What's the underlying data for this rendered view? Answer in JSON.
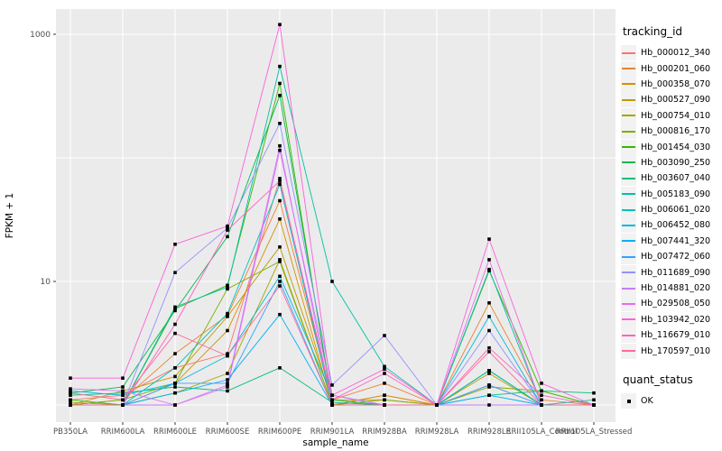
{
  "chart_data": {
    "type": "line",
    "title": "",
    "xlabel": "sample_name",
    "ylabel": "FPKM + 1",
    "y_scale": "log10",
    "y_ticks": [
      1000,
      10
    ],
    "y_tick_labels": [
      "1000",
      "10"
    ],
    "y_gridline_values": [
      1,
      10,
      100,
      1000
    ],
    "ylim": [
      0.73,
      1600
    ],
    "grid": true,
    "panel_bg": "#EBEBEB",
    "grid_color": "#FFFFFF",
    "point_color": "#000000",
    "axis_text_color": "#4D4D4D",
    "categories": [
      "PB350LA",
      "RRIM600LA",
      "RRIM600LE",
      "RRIM600SE",
      "RRIM600PE",
      "RRIM901LA",
      "RRIM928BA",
      "RRIM928LA",
      "RRIM928LE",
      "RRII105LA_Control",
      "RRII105LA_Stressed"
    ],
    "legend": {
      "title": "tracking_id",
      "position": "right"
    },
    "legend2": {
      "title": "quant_status",
      "items": [
        {
          "label": "OK",
          "symbol": "square",
          "color": "#000000"
        }
      ]
    },
    "series": [
      {
        "name": "Hb_000012_340",
        "color": "#F8766D",
        "values": [
          1.1,
          1.2,
          2.0,
          2.6,
          68,
          1.0,
          1.2,
          1.0,
          1.45,
          1.0,
          1.0
        ]
      },
      {
        "name": "Hb_000201_060",
        "color": "#EA8331",
        "values": [
          1.0,
          1.1,
          2.6,
          5.3,
          45,
          1.1,
          1.5,
          1.0,
          6.7,
          1.1,
          1.0
        ]
      },
      {
        "name": "Hb_000358_070",
        "color": "#D89000",
        "values": [
          1.0,
          1.0,
          1.5,
          4.0,
          32,
          1.0,
          1.2,
          1.0,
          1.9,
          1.0,
          1.0
        ]
      },
      {
        "name": "Hb_000527_090",
        "color": "#C09B00",
        "values": [
          1.0,
          1.3,
          1.7,
          5.2,
          19,
          1.1,
          1.1,
          1.0,
          1.8,
          1.0,
          1.0
        ]
      },
      {
        "name": "Hb_000754_010",
        "color": "#A3A500",
        "values": [
          1.05,
          1.0,
          1.25,
          1.8,
          15,
          1.0,
          1.0,
          1.0,
          1.9,
          1.0,
          1.0
        ]
      },
      {
        "name": "Hb_000816_170",
        "color": "#7CAE00",
        "values": [
          1.0,
          1.1,
          1.5,
          8.7,
          14.5,
          1.0,
          1.1,
          1.0,
          1.4,
          1.3,
          1.0
        ]
      },
      {
        "name": "Hb_001454_030",
        "color": "#39B600",
        "values": [
          1.1,
          1.0,
          6.0,
          9.3,
          400,
          1.0,
          1.0,
          1.0,
          12.2,
          1.3,
          1.0
        ]
      },
      {
        "name": "Hb_003090_250",
        "color": "#00BB4E",
        "values": [
          1.25,
          1.4,
          5.8,
          23,
          320,
          1.1,
          1.0,
          1.0,
          1.9,
          1.0,
          1.0
        ]
      },
      {
        "name": "Hb_003607_040",
        "color": "#00BF7D",
        "values": [
          1.2,
          1.25,
          1.4,
          1.3,
          2.0,
          1.05,
          1.0,
          1.0,
          1.2,
          1.3,
          1.25
        ]
      },
      {
        "name": "Hb_005183_090",
        "color": "#00C1A3",
        "values": [
          1.0,
          1.0,
          6.2,
          9.0,
          550,
          10,
          2.05,
          1.0,
          12.5,
          1.0,
          1.1
        ]
      },
      {
        "name": "Hb_006061_020",
        "color": "#00BFC4",
        "values": [
          1.0,
          1.0,
          2.0,
          5.5,
          61,
          1.0,
          1.0,
          1.0,
          1.9,
          1.0,
          1.0
        ]
      },
      {
        "name": "Hb_006452_080",
        "color": "#00BADE",
        "values": [
          1.3,
          1.2,
          1.5,
          2.5,
          11,
          1.2,
          1.0,
          1.0,
          5.2,
          1.0,
          1.0
        ]
      },
      {
        "name": "Hb_007441_320",
        "color": "#00B0F6",
        "values": [
          1.0,
          1.0,
          1.25,
          1.6,
          5.4,
          1.0,
          1.0,
          1.0,
          1.2,
          1.0,
          1.0
        ]
      },
      {
        "name": "Hb_007472_060",
        "color": "#35A2FF",
        "values": [
          1.0,
          1.0,
          1.5,
          1.5,
          10,
          1.0,
          1.0,
          1.0,
          1.45,
          1.0,
          1.0
        ]
      },
      {
        "name": "Hb_011689_090",
        "color": "#9590FF",
        "values": [
          1.0,
          1.0,
          11.8,
          27,
          190,
          1.45,
          3.65,
          1.0,
          4.0,
          1.0,
          1.0
        ]
      },
      {
        "name": "Hb_014881_020",
        "color": "#C77CFF",
        "values": [
          1.0,
          1.0,
          1.0,
          1.45,
          125,
          1.0,
          1.0,
          1.0,
          1.0,
          1.0,
          1.0
        ]
      },
      {
        "name": "Hb_029508_050",
        "color": "#E76BF3",
        "values": [
          1.35,
          1.3,
          1.0,
          1.4,
          115,
          1.2,
          1.0,
          1.0,
          15,
          1.0,
          1.0
        ]
      },
      {
        "name": "Hb_103942_020",
        "color": "#FA62DB",
        "values": [
          1.65,
          1.65,
          20,
          28,
          1200,
          1.2,
          1.95,
          1.0,
          22,
          1.5,
          1.0
        ]
      },
      {
        "name": "Hb_116679_010",
        "color": "#FF61C3",
        "values": [
          1.0,
          1.0,
          4.5,
          26,
          65,
          1.1,
          1.8,
          1.0,
          2.9,
          1.2,
          1.0
        ]
      },
      {
        "name": "Hb_170597_010",
        "color": "#FF699C",
        "values": [
          1.25,
          1.1,
          3.8,
          2.5,
          9.2,
          1.0,
          1.0,
          1.0,
          2.7,
          1.0,
          1.0
        ]
      }
    ]
  }
}
